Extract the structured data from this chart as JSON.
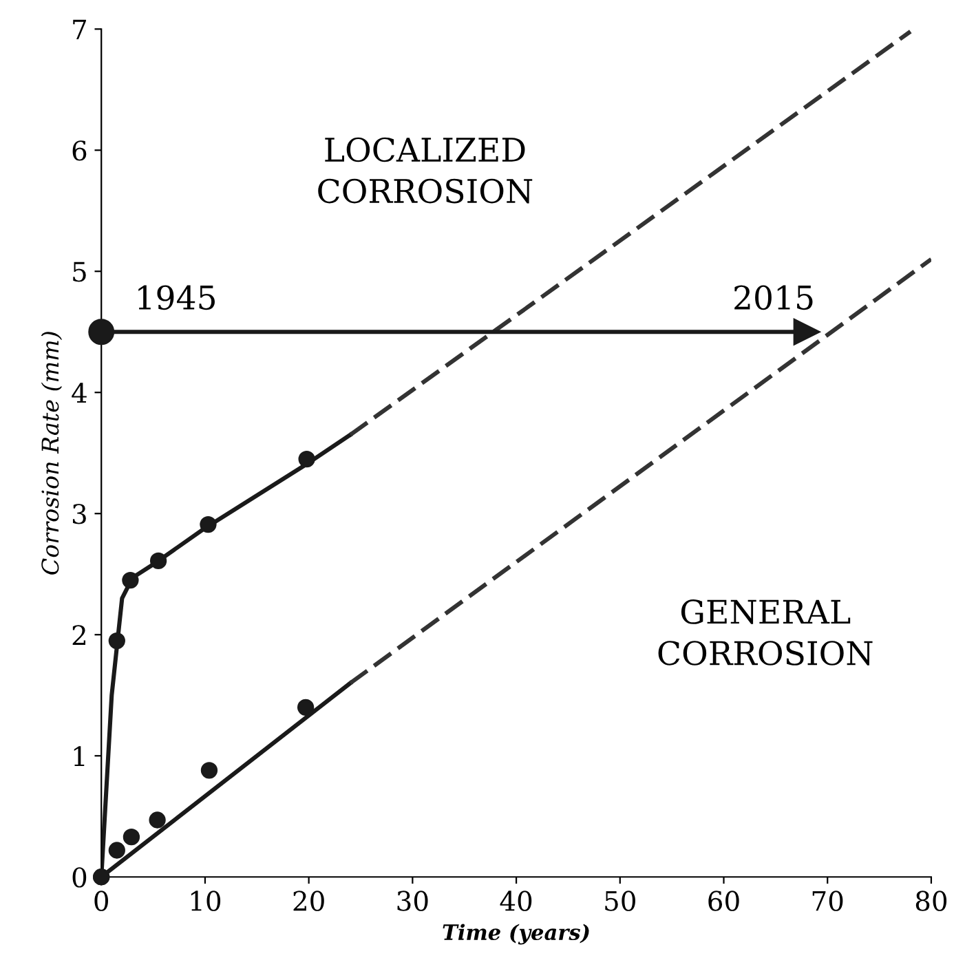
{
  "chart_data": {
    "type": "line",
    "xlabel": "Time (years)",
    "ylabel": "Corrosion Rate (mm)",
    "xlim": [
      0,
      80
    ],
    "ylim": [
      0,
      7
    ],
    "xticks": [
      0,
      10,
      20,
      30,
      40,
      50,
      60,
      70,
      80
    ],
    "yticks": [
      0,
      1,
      2,
      3,
      4,
      5,
      6,
      7
    ],
    "grid": false,
    "series": [
      {
        "type": "scatter",
        "color": "#1a1a1a",
        "marker": "circle",
        "x": [
          0,
          1.5,
          2.8,
          5.5,
          10.3,
          19.8
        ],
        "values": [
          0,
          1.95,
          2.45,
          2.61,
          2.91,
          3.45
        ]
      },
      {
        "type": "scatter",
        "color": "#1a1a1a",
        "marker": "circle",
        "x": [
          0,
          1.5,
          2.9,
          5.4,
          10.4,
          19.7
        ],
        "values": [
          0,
          0.22,
          0.33,
          0.47,
          0.88,
          1.4
        ]
      },
      {
        "color": "#1a1a1a",
        "line_style": "solid",
        "x": [
          0,
          1,
          2,
          3,
          5,
          10,
          20,
          24
        ],
        "values": [
          0,
          1.5,
          2.3,
          2.47,
          2.58,
          2.88,
          3.42,
          3.65
        ]
      },
      {
        "color": "#1a1a1a",
        "line_style": "solid",
        "x": [
          0,
          24
        ],
        "values": [
          0,
          1.6
        ]
      },
      {
        "color": "#333333",
        "line_style": "dashed",
        "x": [
          24,
          78
        ],
        "values": [
          3.65,
          6.98
        ]
      },
      {
        "color": "#333333",
        "line_style": "dashed",
        "x": [
          24,
          80
        ],
        "values": [
          1.6,
          5.1
        ]
      },
      {
        "type": "scatter",
        "color": "#1a1a1a",
        "marker": "circle",
        "x": [
          0
        ],
        "values": [
          4.5
        ]
      },
      {
        "color": "#1a1a1a",
        "line_style": "solid",
        "marker": "triangle",
        "x": [
          0,
          68
        ],
        "values": [
          4.5,
          4.5
        ]
      }
    ],
    "annotations": [
      "1945",
      "2015",
      "LOCALIZED\nCORROSION",
      "GENERAL\nCORROSION"
    ]
  }
}
